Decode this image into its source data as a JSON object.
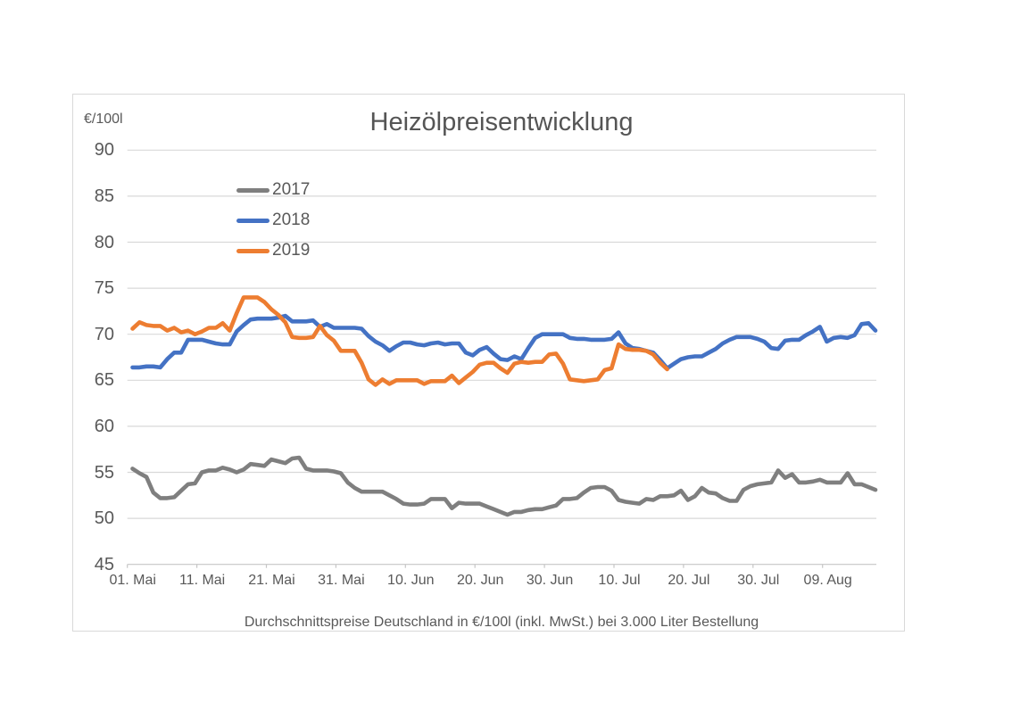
{
  "chart_data": {
    "type": "line",
    "title": "Heizölpreisentwicklung",
    "unit_label": "€/100l",
    "caption": "Durchschnittspreise Deutschland in €/100l (inkl. MwSt.) bei 3.000 Liter Bestellung",
    "x_tick_labels": [
      "01. Mai",
      "11. Mai",
      "21. Mai",
      "31. Mai",
      "10. Jun",
      "20. Jun",
      "30. Jun",
      "10. Jul",
      "20. Jul",
      "30. Jul",
      "09. Aug"
    ],
    "x_interval_days": 10,
    "y_ticks": [
      90,
      85,
      80,
      75,
      70,
      65,
      60,
      55,
      50,
      45
    ],
    "ylim": [
      45,
      90
    ],
    "grid": "horizontal",
    "legend_position": "upper-left-inside",
    "grid_color": "#d9d9d9",
    "axis_color": "#c6c6c6",
    "text_color": "#595959",
    "series": [
      {
        "name": "2017",
        "color": "#7f7f7f",
        "values": [
          55.4,
          54.9,
          54.5,
          52.8,
          52.2,
          52.2,
          52.3,
          53.0,
          53.7,
          53.8,
          55.0,
          55.2,
          55.2,
          55.5,
          55.3,
          55.0,
          55.3,
          55.9,
          55.8,
          55.7,
          56.4,
          56.2,
          56.0,
          56.5,
          56.6,
          55.4,
          55.2,
          55.2,
          55.2,
          55.1,
          54.9,
          53.9,
          53.3,
          52.9,
          52.9,
          52.9,
          52.9,
          52.5,
          52.1,
          51.6,
          51.5,
          51.5,
          51.6,
          52.1,
          52.1,
          52.1,
          51.1,
          51.7,
          51.6,
          51.6,
          51.6,
          51.3,
          51.0,
          50.7,
          50.4,
          50.7,
          50.7,
          50.9,
          51.0,
          51.0,
          51.2,
          51.4,
          52.1,
          52.1,
          52.2,
          52.8,
          53.3,
          53.4,
          53.4,
          53.0,
          52.0,
          51.8,
          51.7,
          51.6,
          52.1,
          52.0,
          52.4,
          52.4,
          52.5,
          53.0,
          52.0,
          52.4,
          53.3,
          52.8,
          52.7,
          52.2,
          51.9,
          51.9,
          53.1,
          53.5,
          53.7,
          53.8,
          53.9,
          55.2,
          54.4,
          54.8,
          53.9,
          53.9,
          54.0,
          54.2,
          53.9,
          53.9,
          53.9,
          54.9,
          53.7,
          53.7,
          53.4,
          53.1
        ]
      },
      {
        "name": "2018",
        "color": "#4472c4",
        "values": [
          66.4,
          66.4,
          66.5,
          66.5,
          66.4,
          67.3,
          68.0,
          68.0,
          69.4,
          69.4,
          69.4,
          69.2,
          69.0,
          68.9,
          68.9,
          70.3,
          71.0,
          71.6,
          71.7,
          71.7,
          71.7,
          71.8,
          72.0,
          71.4,
          71.4,
          71.4,
          71.5,
          70.8,
          71.1,
          70.7,
          70.7,
          70.7,
          70.7,
          70.6,
          69.8,
          69.2,
          68.8,
          68.2,
          68.7,
          69.1,
          69.1,
          68.9,
          68.8,
          69.0,
          69.1,
          68.9,
          69.0,
          69.0,
          68.0,
          67.7,
          68.3,
          68.6,
          67.9,
          67.3,
          67.2,
          67.6,
          67.3,
          68.5,
          69.6,
          70.0,
          70.0,
          70.0,
          70.0,
          69.6,
          69.5,
          69.5,
          69.4,
          69.4,
          69.4,
          69.5,
          70.2,
          69.0,
          68.5,
          68.4,
          68.2,
          68.0,
          67.2,
          66.3,
          66.8,
          67.3,
          67.5,
          67.6,
          67.6,
          68.0,
          68.4,
          69.0,
          69.4,
          69.7,
          69.7,
          69.7,
          69.5,
          69.2,
          68.5,
          68.4,
          69.3,
          69.4,
          69.4,
          69.9,
          70.3,
          70.8,
          69.2,
          69.6,
          69.7,
          69.6,
          69.9,
          71.1,
          71.2,
          70.4
        ]
      },
      {
        "name": "2019",
        "color": "#ed7d31",
        "values": [
          70.6,
          71.3,
          71.0,
          70.9,
          70.9,
          70.4,
          70.7,
          70.2,
          70.4,
          70.0,
          70.3,
          70.7,
          70.7,
          71.2,
          70.4,
          72.3,
          74.0,
          74.0,
          74.0,
          73.5,
          72.7,
          72.1,
          71.3,
          69.7,
          69.6,
          69.6,
          69.7,
          70.9,
          69.9,
          69.3,
          68.2,
          68.2,
          68.2,
          66.9,
          65.1,
          64.5,
          65.1,
          64.6,
          65.0,
          65.0,
          65.0,
          65.0,
          64.6,
          64.9,
          64.9,
          64.9,
          65.5,
          64.7,
          65.3,
          65.9,
          66.7,
          66.9,
          66.9,
          66.3,
          65.8,
          66.8,
          67.0,
          66.9,
          67.0,
          67.0,
          67.8,
          67.9,
          66.8,
          65.1,
          65.0,
          64.9,
          65.0,
          65.1,
          66.1,
          66.3,
          68.9,
          68.4,
          68.3,
          68.3,
          68.2,
          67.8,
          66.9,
          66.2
        ]
      }
    ]
  }
}
